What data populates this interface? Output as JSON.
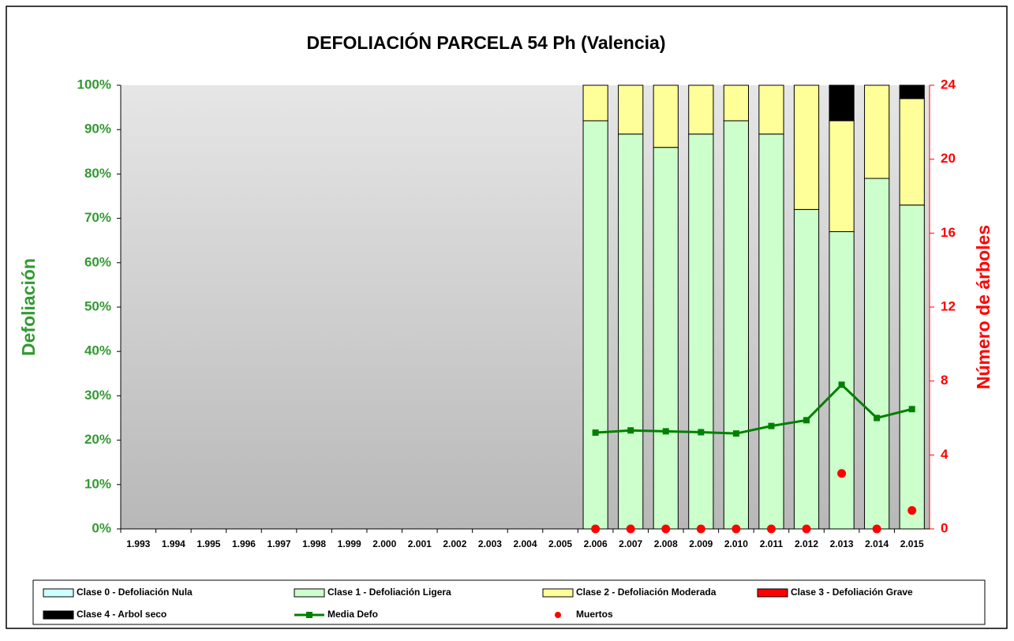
{
  "chart_data": {
    "type": "bar",
    "stacked": true,
    "title": "DEFOLIACIÓN PARCELA 54 Ph (Valencia)",
    "y_label": "Defoliación",
    "y2_label": "Número de árboles",
    "categories": [
      "1.993",
      "1.994",
      "1.995",
      "1.996",
      "1.997",
      "1.998",
      "1.999",
      "2.000",
      "2.001",
      "2.002",
      "2.003",
      "2.004",
      "2.005",
      "2.006",
      "2.007",
      "2.008",
      "2.009",
      "2.010",
      "2.011",
      "2.012",
      "2.013",
      "2.014",
      "2.015"
    ],
    "ylim": [
      0,
      100
    ],
    "yticks": [
      {
        "value": 0,
        "label": "0%"
      },
      {
        "value": 10,
        "label": "10%"
      },
      {
        "value": 20,
        "label": "20%"
      },
      {
        "value": 30,
        "label": "30%"
      },
      {
        "value": 40,
        "label": "40%"
      },
      {
        "value": 50,
        "label": "50%"
      },
      {
        "value": 60,
        "label": "60%"
      },
      {
        "value": 70,
        "label": "70%"
      },
      {
        "value": 80,
        "label": "80%"
      },
      {
        "value": 90,
        "label": "90%"
      },
      {
        "value": 100,
        "label": "100%"
      }
    ],
    "y2lim": [
      0,
      24
    ],
    "y2ticks": [
      0,
      4,
      8,
      12,
      16,
      20,
      24
    ],
    "grid": false,
    "legend": "bottom",
    "series": [
      {
        "name": "Clase 0 - Defoliación Nula",
        "type": "bar",
        "color": "#ccffff",
        "values": [
          null,
          null,
          null,
          null,
          null,
          null,
          null,
          null,
          null,
          null,
          null,
          null,
          null,
          0,
          0,
          0,
          0,
          0,
          0,
          0,
          0,
          0,
          0
        ]
      },
      {
        "name": "Clase 1 - Defoliación Ligera",
        "type": "bar",
        "color": "#ccffcc",
        "values": [
          null,
          null,
          null,
          null,
          null,
          null,
          null,
          null,
          null,
          null,
          null,
          null,
          null,
          92,
          89,
          86,
          89,
          92,
          89,
          72,
          67,
          79,
          73
        ]
      },
      {
        "name": "Clase 2 - Defoliación Moderada",
        "type": "bar",
        "color": "#ffff99",
        "values": [
          null,
          null,
          null,
          null,
          null,
          null,
          null,
          null,
          null,
          null,
          null,
          null,
          null,
          8,
          11,
          14,
          11,
          8,
          11,
          28,
          25,
          21,
          24
        ]
      },
      {
        "name": "Clase 3 - Defoliación Grave",
        "type": "bar",
        "color": "#ff0000",
        "values": [
          null,
          null,
          null,
          null,
          null,
          null,
          null,
          null,
          null,
          null,
          null,
          null,
          null,
          0,
          0,
          0,
          0,
          0,
          0,
          0,
          0,
          0,
          0
        ]
      },
      {
        "name": "Clase 4 - Arbol seco",
        "type": "bar",
        "color": "#000000",
        "values": [
          null,
          null,
          null,
          null,
          null,
          null,
          null,
          null,
          null,
          null,
          null,
          null,
          null,
          0,
          0,
          0,
          0,
          0,
          0,
          0,
          8,
          0,
          3
        ]
      },
      {
        "name": "Media Defo",
        "type": "line",
        "color": "#008000",
        "values": [
          null,
          null,
          null,
          null,
          null,
          null,
          null,
          null,
          null,
          null,
          null,
          null,
          null,
          21.7,
          22.2,
          22,
          21.8,
          21.5,
          23.2,
          24.5,
          32.5,
          25,
          27
        ]
      },
      {
        "name": "Muertos",
        "type": "scatter",
        "color": "#ff0000",
        "axis": "y2",
        "values": [
          null,
          null,
          null,
          null,
          null,
          null,
          null,
          null,
          null,
          null,
          null,
          null,
          null,
          0,
          0,
          0,
          0,
          0,
          0,
          0,
          3,
          0,
          1
        ]
      }
    ]
  }
}
